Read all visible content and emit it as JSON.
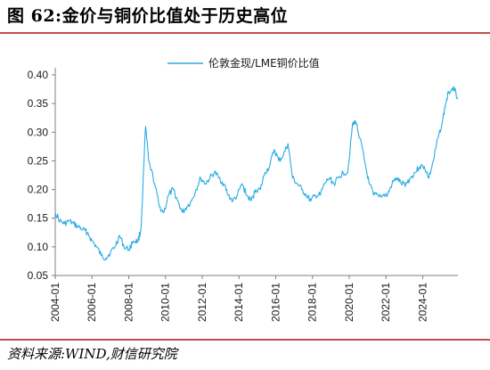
{
  "figure": {
    "title": "图 62:金价与铜价比值处于历史高位",
    "source": "资料来源:WIND,财信研究院"
  },
  "colors": {
    "series": "#29abe2",
    "rule": "#c0504d",
    "axis": "#7f7f7f"
  },
  "chart_data": {
    "type": "line",
    "title": "",
    "xlabel": "",
    "ylabel": "",
    "ylim": [
      0.05,
      0.4
    ],
    "yticks": [
      "0.05",
      "0.10",
      "0.15",
      "0.20",
      "0.25",
      "0.30",
      "0.35",
      "0.40"
    ],
    "xticks": [
      "2004-01",
      "2006-01",
      "2008-01",
      "2010-01",
      "2012-01",
      "2014-01",
      "2016-01",
      "2018-01",
      "2020-01",
      "2022-01",
      "2024-01"
    ],
    "xrange": [
      "2004-01",
      "2025-12"
    ],
    "grid": false,
    "legend_position": "top-center",
    "series": [
      {
        "name": "伦敦金现/LME铜价比值",
        "x": [
          "2004-01",
          "2004-04",
          "2004-07",
          "2004-10",
          "2005-01",
          "2005-04",
          "2005-07",
          "2005-10",
          "2006-01",
          "2006-04",
          "2006-07",
          "2006-10",
          "2007-01",
          "2007-04",
          "2007-07",
          "2007-10",
          "2008-01",
          "2008-04",
          "2008-07",
          "2008-09",
          "2008-12",
          "2009-02",
          "2009-06",
          "2009-09",
          "2009-12",
          "2010-03",
          "2010-06",
          "2010-09",
          "2010-12",
          "2011-03",
          "2011-06",
          "2011-09",
          "2011-12",
          "2012-03",
          "2012-06",
          "2012-09",
          "2012-12",
          "2013-03",
          "2013-06",
          "2013-09",
          "2013-12",
          "2014-03",
          "2014-06",
          "2014-09",
          "2014-12",
          "2015-03",
          "2015-06",
          "2015-09",
          "2015-12",
          "2016-03",
          "2016-06",
          "2016-09",
          "2016-12",
          "2017-03",
          "2017-06",
          "2017-09",
          "2017-12",
          "2018-03",
          "2018-06",
          "2018-09",
          "2018-12",
          "2019-03",
          "2019-06",
          "2019-09",
          "2019-12",
          "2020-03",
          "2020-05",
          "2020-08",
          "2020-11",
          "2021-02",
          "2021-05",
          "2021-08",
          "2021-11",
          "2022-02",
          "2022-05",
          "2022-08",
          "2022-11",
          "2023-02",
          "2023-05",
          "2023-08",
          "2023-11",
          "2024-02",
          "2024-05",
          "2024-08",
          "2024-11",
          "2025-02",
          "2025-04",
          "2025-06",
          "2025-09",
          "2025-12"
        ],
        "values": [
          0.16,
          0.145,
          0.14,
          0.145,
          0.14,
          0.135,
          0.13,
          0.125,
          0.11,
          0.1,
          0.085,
          0.08,
          0.09,
          0.1,
          0.12,
          0.1,
          0.095,
          0.11,
          0.11,
          0.13,
          0.31,
          0.25,
          0.21,
          0.17,
          0.16,
          0.19,
          0.2,
          0.18,
          0.16,
          0.17,
          0.18,
          0.2,
          0.22,
          0.21,
          0.22,
          0.23,
          0.22,
          0.21,
          0.19,
          0.18,
          0.19,
          0.21,
          0.19,
          0.18,
          0.2,
          0.2,
          0.23,
          0.24,
          0.27,
          0.25,
          0.26,
          0.28,
          0.22,
          0.21,
          0.2,
          0.19,
          0.18,
          0.19,
          0.19,
          0.21,
          0.22,
          0.21,
          0.22,
          0.23,
          0.23,
          0.31,
          0.32,
          0.29,
          0.25,
          0.21,
          0.19,
          0.19,
          0.19,
          0.19,
          0.21,
          0.22,
          0.21,
          0.21,
          0.22,
          0.23,
          0.24,
          0.24,
          0.22,
          0.25,
          0.29,
          0.32,
          0.35,
          0.37,
          0.38,
          0.36
        ]
      }
    ]
  }
}
